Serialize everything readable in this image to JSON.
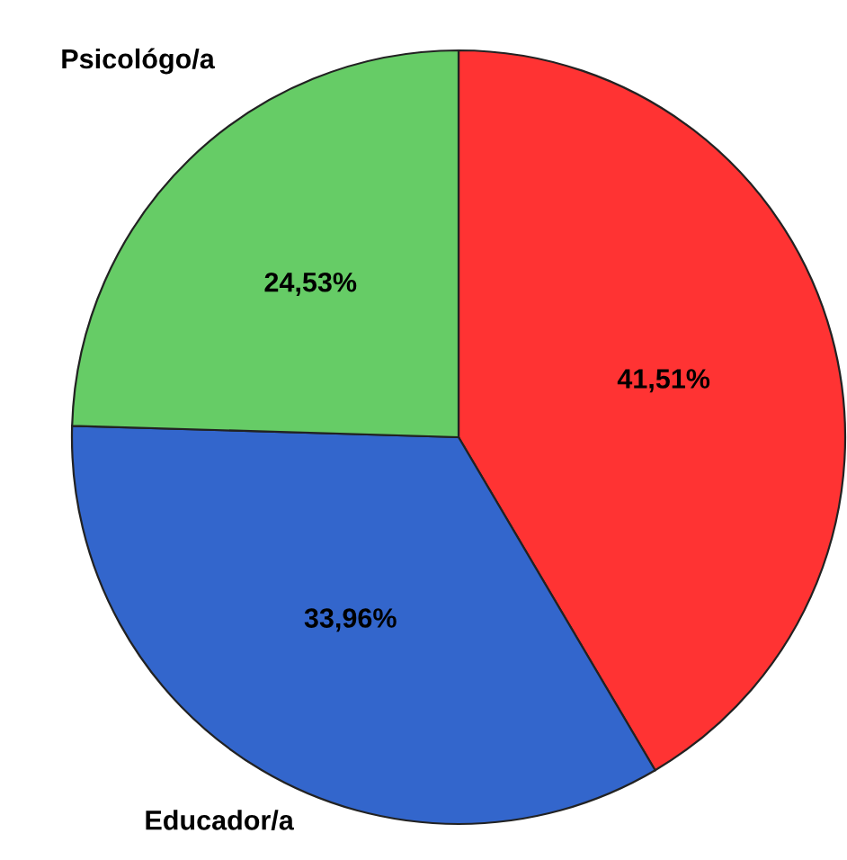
{
  "chart_data": {
    "type": "pie",
    "categories": [
      null,
      "Educador/a",
      "Psicológo/a"
    ],
    "values": [
      41.51,
      33.96,
      24.53
    ],
    "colors": [
      "#ff3333",
      "#3366cc",
      "#66cc66"
    ],
    "value_labels": [
      "41,51%",
      "33,96%",
      "24,53%"
    ]
  }
}
